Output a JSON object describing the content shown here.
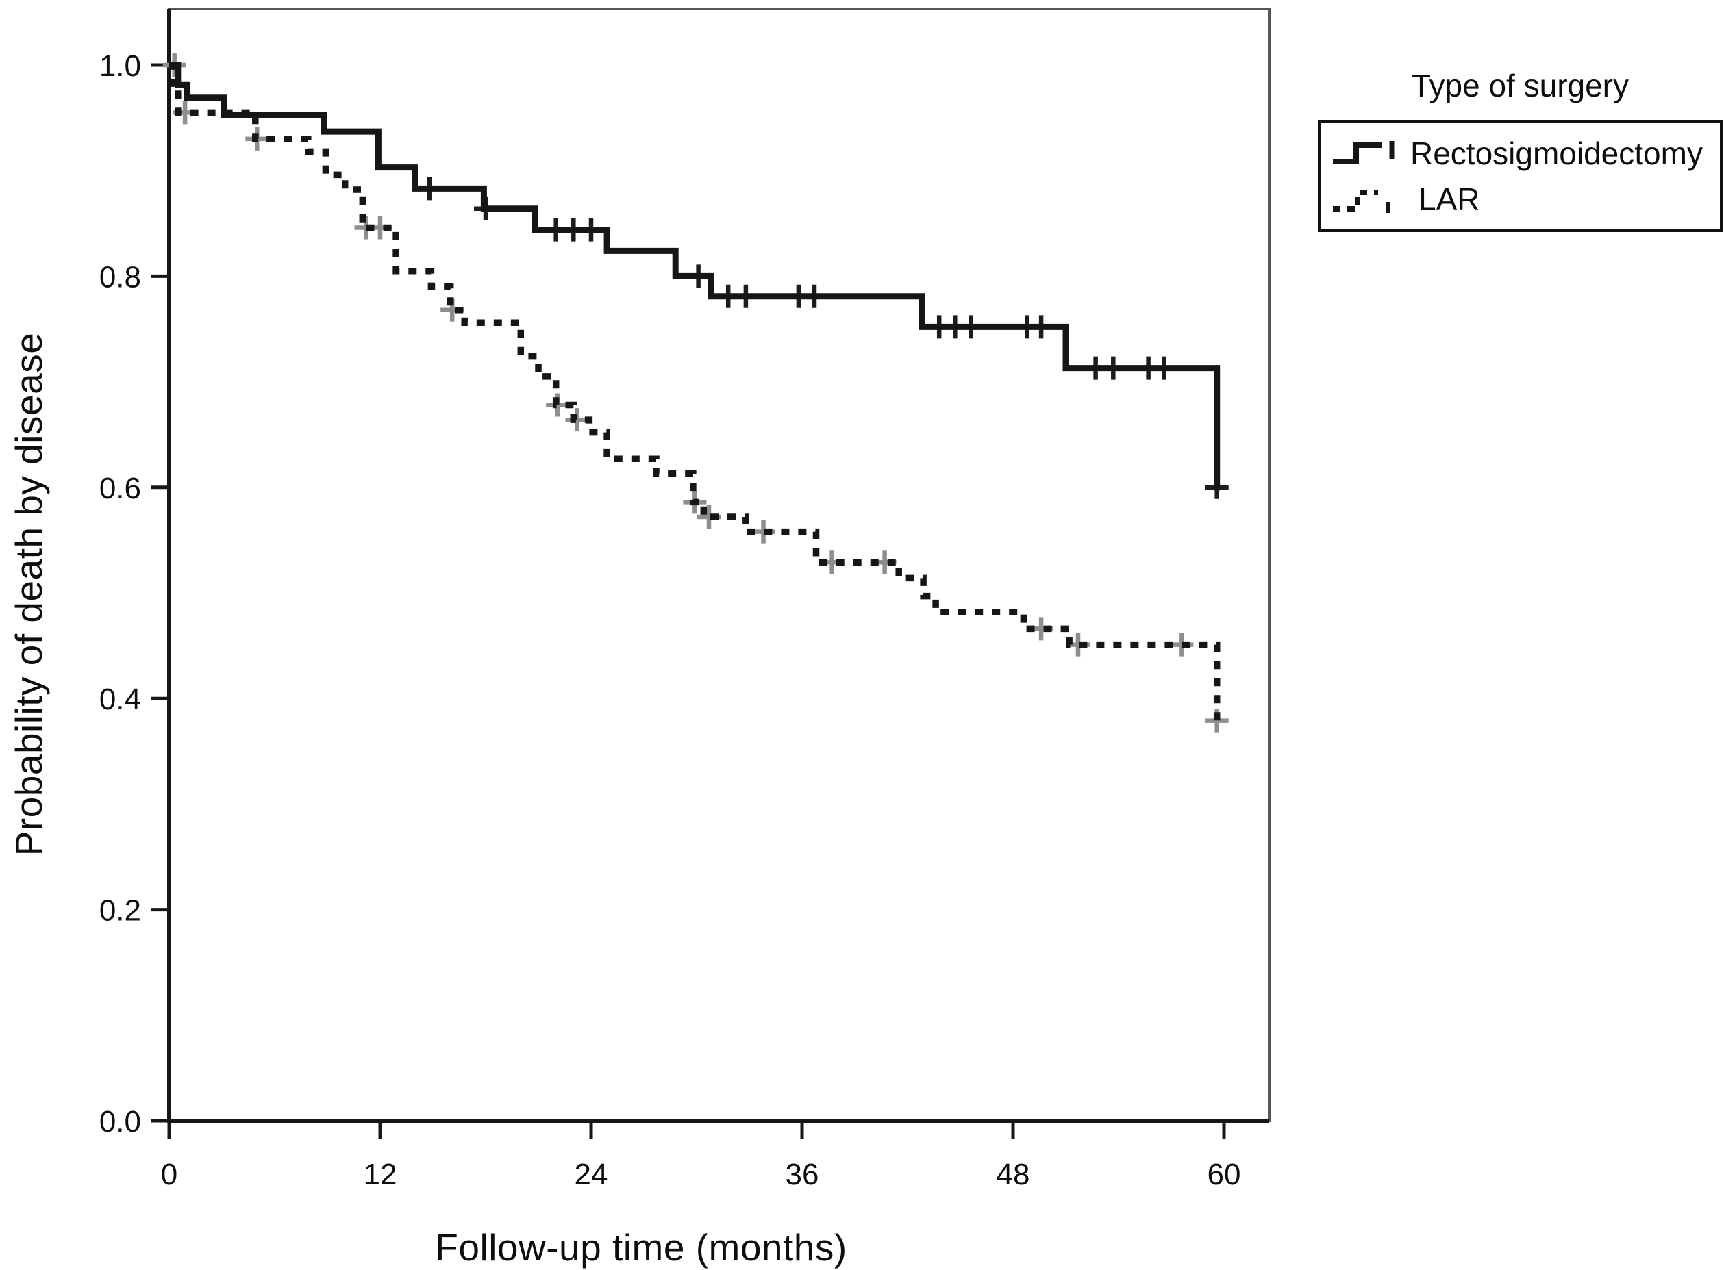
{
  "figure": {
    "x_axis_label": "Follow-up time (months)",
    "y_axis_label": "Probability of death by disease"
  },
  "legend": {
    "title": "Type of surgery",
    "items": [
      {
        "label": "Rectosigmoidectomy",
        "line_style": "solid"
      },
      {
        "label": "LAR",
        "line_style": "dashed"
      }
    ]
  },
  "chart_data": {
    "type": "line",
    "subtype": "kaplan-meier-step",
    "title": "",
    "xlabel": "Follow-up time (months)",
    "ylabel": "Probability of death by disease",
    "xlim": [
      0,
      62.7
    ],
    "ylim": [
      0,
      1.05
    ],
    "x_ticks": [
      0,
      12,
      24,
      36,
      48,
      60
    ],
    "y_tick_labels": [
      "0.0",
      "0.2",
      "0.4",
      "0.6",
      "0.8",
      "1.0"
    ],
    "grid": false,
    "legend_position": "outside-top-right",
    "frame_color": "#555555",
    "axis_color": "#161616",
    "series": [
      {
        "name": "Rectosigmoidectomy",
        "style": "solid",
        "color": "#161616",
        "censor_color": "#1c1c1c",
        "steps": [
          [
            0.0,
            1.0
          ],
          [
            0.5,
            0.981
          ],
          [
            1.0,
            0.969
          ],
          [
            3.1,
            0.953
          ],
          [
            8.8,
            0.937
          ],
          [
            11.9,
            0.903
          ],
          [
            14.0,
            0.883
          ],
          [
            17.9,
            0.864
          ],
          [
            20.8,
            0.844
          ],
          [
            24.9,
            0.824
          ],
          [
            28.8,
            0.8
          ],
          [
            30.8,
            0.781
          ],
          [
            42.8,
            0.752
          ],
          [
            51.0,
            0.713
          ],
          [
            59.6,
            0.597
          ]
        ],
        "censors": [
          [
            14.8,
            0.883
          ],
          [
            18.0,
            0.864
          ],
          [
            22.0,
            0.844
          ],
          [
            23.0,
            0.844
          ],
          [
            24.0,
            0.844
          ],
          [
            30.1,
            0.8
          ],
          [
            31.8,
            0.781
          ],
          [
            32.8,
            0.781
          ],
          [
            35.8,
            0.781
          ],
          [
            36.7,
            0.781
          ],
          [
            43.8,
            0.752
          ],
          [
            44.7,
            0.752
          ],
          [
            45.6,
            0.752
          ],
          [
            48.8,
            0.752
          ],
          [
            49.6,
            0.752
          ],
          [
            52.7,
            0.713
          ],
          [
            53.7,
            0.713
          ],
          [
            55.7,
            0.713
          ],
          [
            56.6,
            0.713
          ],
          [
            59.6,
            0.6
          ]
        ]
      },
      {
        "name": "LAR",
        "style": "dashed",
        "color": "#161616",
        "censor_color": "#8e8e8e",
        "steps": [
          [
            0.0,
            1.0
          ],
          [
            0.2,
            0.978
          ],
          [
            0.5,
            0.955
          ],
          [
            4.9,
            0.93
          ],
          [
            7.9,
            0.918
          ],
          [
            8.9,
            0.896
          ],
          [
            10.0,
            0.882
          ],
          [
            11.0,
            0.846
          ],
          [
            12.9,
            0.805
          ],
          [
            14.9,
            0.79
          ],
          [
            16.0,
            0.768
          ],
          [
            16.8,
            0.756
          ],
          [
            20.0,
            0.724
          ],
          [
            21.0,
            0.705
          ],
          [
            22.0,
            0.678
          ],
          [
            23.0,
            0.664
          ],
          [
            23.9,
            0.652
          ],
          [
            24.9,
            0.627
          ],
          [
            27.7,
            0.613
          ],
          [
            29.8,
            0.586
          ],
          [
            30.4,
            0.572
          ],
          [
            32.8,
            0.558
          ],
          [
            36.8,
            0.529
          ],
          [
            41.5,
            0.514
          ],
          [
            42.9,
            0.497
          ],
          [
            43.6,
            0.482
          ],
          [
            48.6,
            0.466
          ],
          [
            51.2,
            0.451
          ],
          [
            59.6,
            0.379
          ]
        ],
        "censors": [
          [
            0.3,
            1.0
          ],
          [
            0.9,
            0.955
          ],
          [
            5.0,
            0.93
          ],
          [
            11.2,
            0.846
          ],
          [
            12.0,
            0.846
          ],
          [
            16.1,
            0.768
          ],
          [
            22.1,
            0.678
          ],
          [
            23.2,
            0.664
          ],
          [
            29.9,
            0.586
          ],
          [
            30.7,
            0.572
          ],
          [
            33.8,
            0.558
          ],
          [
            37.7,
            0.529
          ],
          [
            40.7,
            0.529
          ],
          [
            49.6,
            0.466
          ],
          [
            51.7,
            0.451
          ],
          [
            57.6,
            0.451
          ],
          [
            59.6,
            0.379
          ]
        ]
      }
    ]
  }
}
